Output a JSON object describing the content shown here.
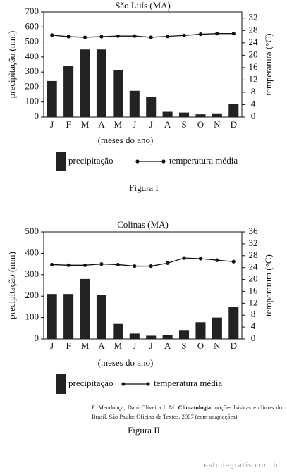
{
  "chart_data": [
    {
      "type": "bar",
      "title": "São Luís (MA)",
      "categories": [
        "J",
        "F",
        "M",
        "A",
        "M",
        "J",
        "J",
        "A",
        "S",
        "O",
        "N",
        "D"
      ],
      "series": [
        {
          "name": "precipitação",
          "color": "#222222",
          "values": [
            240,
            340,
            450,
            450,
            310,
            175,
            135,
            35,
            30,
            18,
            20,
            85
          ]
        },
        {
          "name": "temperatura média",
          "color": "#111111",
          "axis": "y2",
          "type": "line",
          "values": [
            26.5,
            26,
            25.8,
            26,
            26.2,
            26.2,
            25.8,
            26.1,
            26.4,
            26.8,
            27,
            27
          ]
        }
      ],
      "x_label": "(meses do ano)",
      "y_label": "precipitação (mm)",
      "y2_label": "temperatura (°C)",
      "ylim": [
        0,
        700
      ],
      "yticks": [
        0,
        100,
        200,
        300,
        400,
        500,
        600,
        700
      ],
      "y2lim": [
        0,
        34
      ],
      "y2ticks": [
        0,
        4,
        8,
        12,
        16,
        20,
        24,
        28,
        32
      ],
      "caption": "Figura I"
    },
    {
      "type": "bar",
      "title": "Colinas (MA)",
      "categories": [
        "J",
        "F",
        "M",
        "A",
        "M",
        "J",
        "J",
        "A",
        "S",
        "O",
        "N",
        "D"
      ],
      "series": [
        {
          "name": "precipitação",
          "color": "#222222",
          "values": [
            210,
            210,
            280,
            205,
            70,
            25,
            15,
            18,
            42,
            78,
            100,
            150
          ]
        },
        {
          "name": "temperatura média",
          "color": "#111111",
          "axis": "y2",
          "type": "line",
          "values": [
            25,
            24.8,
            24.8,
            25.2,
            25,
            24.5,
            24.5,
            25.5,
            27.2,
            27,
            26.5,
            26
          ]
        }
      ],
      "x_label": "(meses do ano)",
      "y_label": "precipitação (mm)",
      "y2_label": "temperatura (°C)",
      "ylim": [
        0,
        500
      ],
      "yticks": [
        0,
        100,
        200,
        300,
        400,
        500
      ],
      "y2lim": [
        0,
        36
      ],
      "y2ticks": [
        0,
        4,
        8,
        12,
        16,
        20,
        24,
        28,
        32,
        36
      ],
      "caption": "Figura II"
    }
  ],
  "source": [
    "F. Mendonça; Dani Oliveira I. M.",
    "Climatologia",
    ": noções básicas e climas do Brasil. São Paulo: Oficina de Textos, 2007 (com adaptações)."
  ],
  "watermark": "estudegratis.com.br"
}
